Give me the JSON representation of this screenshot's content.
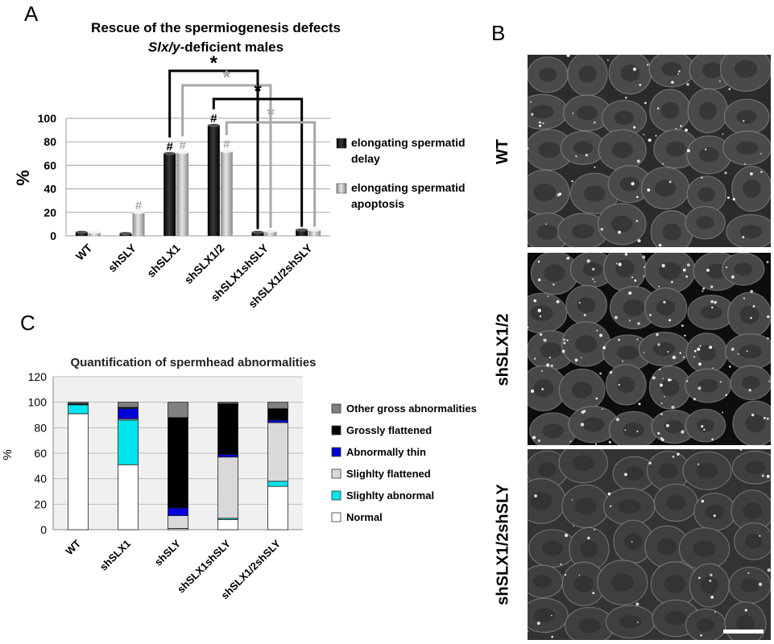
{
  "panels": {
    "a": "A",
    "b": "B",
    "c": "C"
  },
  "chart_data": [
    {
      "type": "bar",
      "title_line1": "Rescue of the spermiogenesis defects",
      "title_line2_italic": "Slx/y",
      "title_line2_rest": "-deficient males",
      "ylabel": "%",
      "ylim": [
        0,
        100
      ],
      "yticks": [
        "0",
        "20",
        "40",
        "60",
        "80",
        "100"
      ],
      "categories": [
        "WT",
        "shSLY",
        "shSLX1",
        "shSLX1/2",
        "shSLX1shSLY",
        "shSLX1/2shSLY"
      ],
      "series": [
        {
          "name": "elongating spermatid delay",
          "legend_lines": [
            "elongating spermatid",
            "delay"
          ],
          "color": "#111111",
          "values": [
            3,
            2,
            70,
            94,
            3,
            5
          ]
        },
        {
          "name": "elongating spermatid apoptosis",
          "legend_lines": [
            "elongating spermatid",
            "apoptosis"
          ],
          "color": "#a8a8a8",
          "values": [
            3,
            20,
            71,
            72,
            4,
            5
          ]
        }
      ],
      "hash_marks": [
        {
          "category": "shSLY",
          "series": 1,
          "text": "#"
        },
        {
          "category": "shSLX1",
          "series": 0,
          "text": "#"
        },
        {
          "category": "shSLX1",
          "series": 1,
          "text": "#"
        },
        {
          "category": "shSLX1/2",
          "series": 0,
          "text": "#"
        },
        {
          "category": "shSLX1/2",
          "series": 1,
          "text": "#"
        }
      ],
      "significance": [
        {
          "from": "shSLX1",
          "to": "shSLX1shSLY",
          "series": 0,
          "label": "*",
          "color": "#000000"
        },
        {
          "from": "shSLX1",
          "to": "shSLX1shSLY",
          "series": 1,
          "label": "*",
          "color": "#a8a8a8"
        },
        {
          "from": "shSLX1/2",
          "to": "shSLX1/2shSLY",
          "series": 0,
          "label": "*",
          "color": "#000000"
        },
        {
          "from": "shSLX1/2",
          "to": "shSLX1/2shSLY",
          "series": 1,
          "label": "*",
          "color": "#a8a8a8"
        }
      ]
    },
    {
      "type": "bar",
      "stacked": true,
      "title": "Quantification of spermhead abnormalities",
      "ylabel": "%",
      "ylim": [
        0,
        120
      ],
      "yticks": [
        "0",
        "20",
        "40",
        "60",
        "80",
        "100",
        "120"
      ],
      "categories": [
        "WT",
        "shSLX1",
        "shSLY",
        "shSLX1shSLY",
        "shSLX1/2shSLY"
      ],
      "series": [
        {
          "name": "Normal",
          "color": "#ffffff",
          "values": [
            91,
            51,
            1,
            8,
            34
          ]
        },
        {
          "name": "Slighlty abnormal",
          "color": "#00e5ee",
          "values": [
            7,
            35,
            0,
            1,
            4
          ]
        },
        {
          "name": "Slighlty flattened",
          "color": "#d9d9d9",
          "values": [
            0,
            1,
            10,
            48,
            46
          ]
        },
        {
          "name": "Abnormally thin",
          "color": "#0000dd",
          "values": [
            0,
            8,
            6,
            2,
            2
          ]
        },
        {
          "name": "Grossly flattened",
          "color": "#000000",
          "values": [
            1,
            1,
            71,
            40,
            9
          ]
        },
        {
          "name": "Other gross abnormalities",
          "color": "#808080",
          "values": [
            1,
            4,
            12,
            1,
            5
          ]
        }
      ]
    }
  ],
  "micrographs": [
    {
      "label": "WT"
    },
    {
      "label": "shSLX1/2"
    },
    {
      "label": "shSLX1/2shSLY"
    }
  ]
}
